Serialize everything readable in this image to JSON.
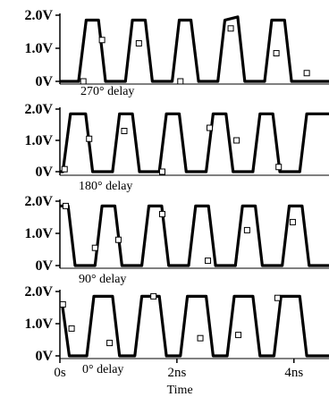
{
  "chart_data": [
    {
      "type": "line",
      "title": "270° delay",
      "ylim": [
        0,
        2.0
      ],
      "y_ticks": [
        "2.0V",
        "1.0V",
        "0V"
      ],
      "xlim": [
        0,
        4.6
      ],
      "x_unit": "ns",
      "series": [
        {
          "x": [
            0.0,
            0.32,
            0.45,
            0.66,
            0.78,
            1.12,
            1.24,
            1.46,
            1.58,
            1.92,
            2.04,
            2.24,
            2.37,
            2.7,
            2.82,
            3.04,
            3.16,
            3.5,
            3.62,
            3.84,
            3.96,
            4.3,
            4.42,
            4.6
          ],
          "y": [
            0.0,
            0.0,
            1.85,
            1.85,
            0.0,
            0.0,
            1.85,
            1.85,
            0.0,
            0.0,
            1.85,
            1.85,
            0.0,
            0.0,
            1.85,
            1.95,
            0.0,
            0.0,
            1.85,
            1.85,
            0.0,
            0.0,
            0.0,
            0.0
          ]
        }
      ],
      "markers": [
        {
          "x": 0.4,
          "y": 0.0
        },
        {
          "x": 0.72,
          "y": 1.25
        },
        {
          "x": 1.35,
          "y": 1.15
        },
        {
          "x": 2.06,
          "y": 0.0
        },
        {
          "x": 2.92,
          "y": 1.6
        },
        {
          "x": 3.7,
          "y": 0.85
        },
        {
          "x": 4.22,
          "y": 0.25
        }
      ]
    },
    {
      "type": "line",
      "title": "180° delay",
      "ylim": [
        0,
        2.0
      ],
      "y_ticks": [
        "2.0V",
        "1.0V",
        "0V"
      ],
      "xlim": [
        0,
        4.6
      ],
      "x_unit": "ns",
      "series": [
        {
          "x": [
            0.0,
            0.05,
            0.18,
            0.44,
            0.56,
            0.9,
            1.02,
            1.24,
            1.36,
            1.7,
            1.82,
            2.04,
            2.16,
            2.5,
            2.62,
            2.84,
            2.96,
            3.3,
            3.42,
            3.64,
            3.76,
            4.1,
            4.22,
            4.45,
            4.6
          ],
          "y": [
            0.0,
            0.0,
            1.85,
            1.85,
            0.0,
            0.0,
            1.85,
            1.85,
            0.0,
            0.0,
            1.85,
            1.85,
            0.0,
            0.0,
            1.85,
            1.85,
            0.0,
            0.0,
            1.85,
            1.85,
            0.0,
            0.0,
            1.85,
            1.85,
            1.85
          ]
        }
      ],
      "markers": [
        {
          "x": 0.08,
          "y": 0.08
        },
        {
          "x": 0.5,
          "y": 1.05
        },
        {
          "x": 1.1,
          "y": 1.3
        },
        {
          "x": 1.75,
          "y": 0.0
        },
        {
          "x": 2.56,
          "y": 1.4
        },
        {
          "x": 3.02,
          "y": 1.0
        },
        {
          "x": 3.74,
          "y": 0.15
        }
      ]
    },
    {
      "type": "line",
      "title": "90° delay",
      "ylim": [
        0,
        2.0
      ],
      "y_ticks": [
        "2.0V",
        "1.0V",
        "0V"
      ],
      "xlim": [
        0,
        4.6
      ],
      "x_unit": "ns",
      "series": [
        {
          "x": [
            0.0,
            0.14,
            0.26,
            0.6,
            0.72,
            0.94,
            1.06,
            1.4,
            1.52,
            1.74,
            1.86,
            2.2,
            2.32,
            2.54,
            2.66,
            3.0,
            3.12,
            3.34,
            3.46,
            3.8,
            3.92,
            4.14,
            4.26,
            4.6
          ],
          "y": [
            1.85,
            1.85,
            0.0,
            0.0,
            1.85,
            1.85,
            0.0,
            0.0,
            1.85,
            1.85,
            0.0,
            0.0,
            1.85,
            1.85,
            0.0,
            0.0,
            1.85,
            1.85,
            0.0,
            0.0,
            1.85,
            1.85,
            0.0,
            0.0
          ]
        }
      ],
      "markers": [
        {
          "x": 0.1,
          "y": 1.85
        },
        {
          "x": 0.6,
          "y": 0.55
        },
        {
          "x": 1.0,
          "y": 0.8
        },
        {
          "x": 1.75,
          "y": 1.6
        },
        {
          "x": 2.53,
          "y": 0.15
        },
        {
          "x": 3.2,
          "y": 1.1
        },
        {
          "x": 3.98,
          "y": 1.35
        }
      ]
    },
    {
      "type": "line",
      "title": "0° delay",
      "xlabel": "Time",
      "ylim": [
        0,
        2.0
      ],
      "y_ticks": [
        "2.0V",
        "1.0V",
        "0V"
      ],
      "xlim": [
        0,
        4.6
      ],
      "x_ticks": [
        {
          "value": 0,
          "label": "0s"
        },
        {
          "value": 2,
          "label": "2ns"
        },
        {
          "value": 4,
          "label": "4ns"
        }
      ],
      "series": [
        {
          "x": [
            0.0,
            0.04,
            0.16,
            0.46,
            0.58,
            0.9,
            1.02,
            1.28,
            1.4,
            1.7,
            1.82,
            2.06,
            2.18,
            2.5,
            2.62,
            2.86,
            2.98,
            3.3,
            3.42,
            3.66,
            3.78,
            4.1,
            4.22,
            4.46,
            4.6
          ],
          "y": [
            1.6,
            1.6,
            0.0,
            0.0,
            1.85,
            1.85,
            0.0,
            0.0,
            1.85,
            1.85,
            0.0,
            0.0,
            1.85,
            1.85,
            0.0,
            0.0,
            1.85,
            1.85,
            0.0,
            0.0,
            1.85,
            1.85,
            0.0,
            0.0,
            0.0
          ]
        }
      ],
      "markers": [
        {
          "x": 0.05,
          "y": 1.6
        },
        {
          "x": 0.2,
          "y": 0.85
        },
        {
          "x": 0.85,
          "y": 0.4
        },
        {
          "x": 1.6,
          "y": 1.85
        },
        {
          "x": 2.4,
          "y": 0.55
        },
        {
          "x": 3.05,
          "y": 0.65
        },
        {
          "x": 3.72,
          "y": 1.8
        }
      ]
    }
  ]
}
